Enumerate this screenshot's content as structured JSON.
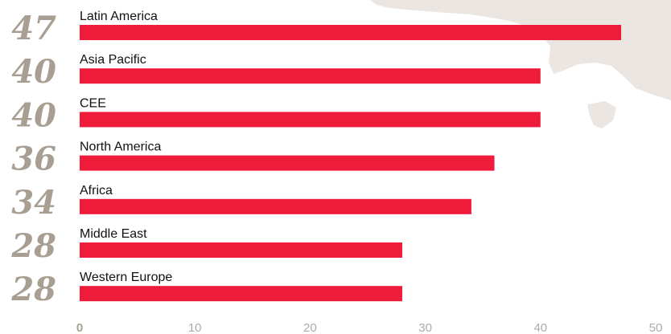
{
  "chart_data": {
    "type": "bar",
    "orientation": "horizontal",
    "categories": [
      "Latin America",
      "Asia Pacific",
      "CEE",
      "North America",
      "Africa",
      "Middle East",
      "Western Europe"
    ],
    "values": [
      47,
      40,
      40,
      36,
      34,
      28,
      28
    ],
    "value_labels": [
      "47",
      "40",
      "40",
      "36",
      "34",
      "28",
      "28"
    ],
    "xlim": [
      0,
      50
    ],
    "xticks": [
      0,
      10,
      20,
      30,
      40,
      50
    ],
    "xtick_labels": [
      "0",
      "10",
      "20",
      "30",
      "40",
      "50"
    ],
    "grid": false,
    "bar_color": "#ee1c3a",
    "value_label_color": "#a89e92",
    "tick_label_color": "#b0aaa2",
    "first_tick_color": "#a89e92",
    "background_map_color": "#ebe6e1"
  }
}
